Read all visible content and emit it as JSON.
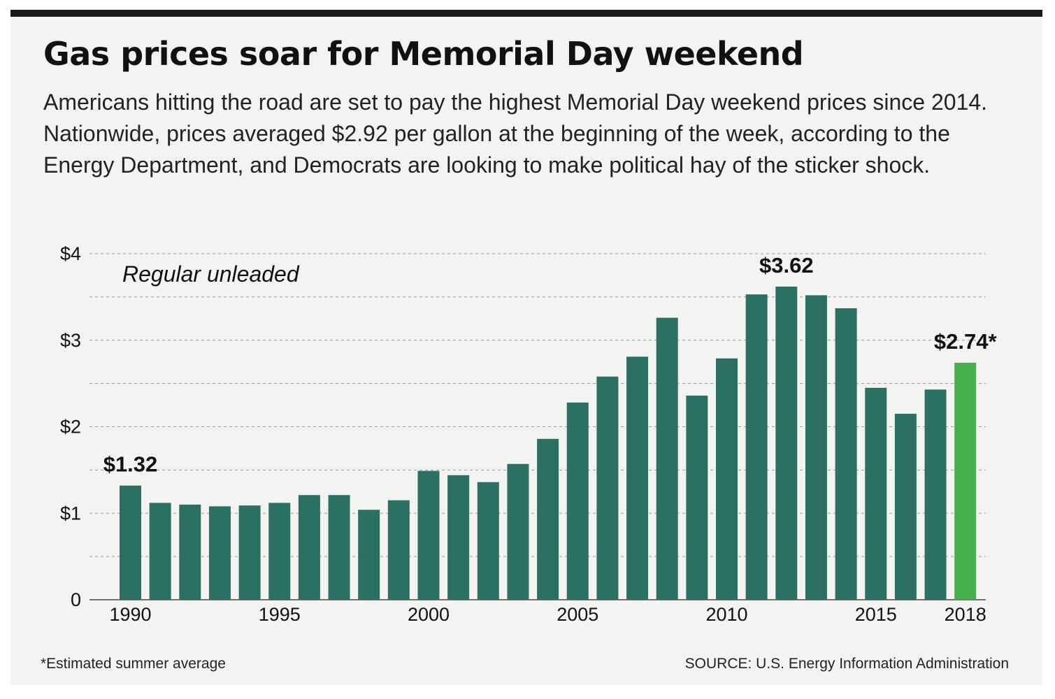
{
  "header": {
    "title": "Gas prices soar for Memorial Day weekend",
    "subtitle": "Americans hitting the road are set to pay the highest Memorial Day weekend prices since 2014. Nationwide, prices averaged $2.92 per gallon at the beginning of the week, according to the Energy Department, and Democrats are looking to make political hay of the sticker shock."
  },
  "footer": {
    "footnote": "*Estimated summer average",
    "source": "SOURCE: U.S. Energy Information Administration"
  },
  "colors": {
    "bar": "#2c7063",
    "highlight_bar": "#45b04c",
    "grid": "#9a9a9a",
    "panel_background": "#f3f4f2",
    "top_rule": "#1a1a1a"
  },
  "chart_data": {
    "type": "bar",
    "series_label": "Regular unleaded",
    "categories": [
      1990,
      1991,
      1992,
      1993,
      1994,
      1995,
      1996,
      1997,
      1998,
      1999,
      2000,
      2001,
      2002,
      2003,
      2004,
      2005,
      2006,
      2007,
      2008,
      2009,
      2010,
      2011,
      2012,
      2013,
      2014,
      2015,
      2016,
      2017,
      2018
    ],
    "values": [
      1.32,
      1.12,
      1.1,
      1.08,
      1.09,
      1.12,
      1.21,
      1.21,
      1.04,
      1.15,
      1.49,
      1.44,
      1.36,
      1.57,
      1.86,
      2.28,
      2.58,
      2.81,
      3.26,
      2.36,
      2.79,
      3.53,
      3.62,
      3.52,
      3.37,
      2.45,
      2.15,
      2.43,
      2.74
    ],
    "highlight_category": 2018,
    "ylim": [
      0,
      4
    ],
    "y_ticks": [
      {
        "value": 0,
        "label": "0"
      },
      {
        "value": 1,
        "label": "$1"
      },
      {
        "value": 2,
        "label": "$2"
      },
      {
        "value": 3,
        "label": "$3"
      },
      {
        "value": 4,
        "label": "$4"
      }
    ],
    "minor_grid_step": 0.5,
    "x_ticks": [
      {
        "value": 1990,
        "label": "1990"
      },
      {
        "value": 1995,
        "label": "1995"
      },
      {
        "value": 2000,
        "label": "2000"
      },
      {
        "value": 2005,
        "label": "2005"
      },
      {
        "value": 2010,
        "label": "2010"
      },
      {
        "value": 2015,
        "label": "2015"
      },
      {
        "value": 2018,
        "label": "2018"
      }
    ],
    "annotations": [
      {
        "category": 1990,
        "text": "$1.32"
      },
      {
        "category": 2012,
        "text": "$3.62"
      },
      {
        "category": 2018,
        "text": "$2.74*"
      }
    ],
    "grid": true,
    "grid_style": "dashed",
    "legend": "none"
  }
}
